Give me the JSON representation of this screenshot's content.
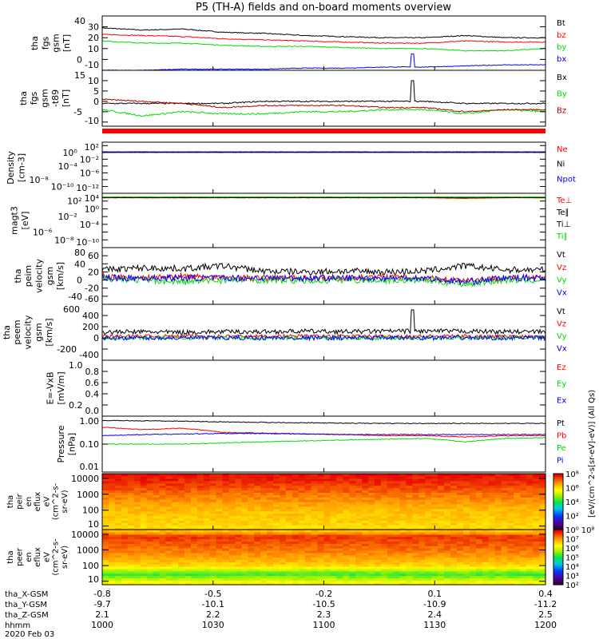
{
  "chart_data": {
    "type": "line",
    "title": "P5 (TH-A) fields and on-board moments overview",
    "x_ticks": [
      "1000",
      "1030",
      "1100",
      "1130",
      "1200"
    ],
    "x_range_hhmm": [
      1000,
      1200
    ],
    "panels": [
      {
        "ylabel": [
          "tha",
          "fgs",
          "gsm",
          "[nT]"
        ],
        "scale": "linear",
        "ylim": [
          -10,
          40
        ],
        "yticks": [
          -10,
          0,
          10,
          20,
          30,
          40
        ],
        "ytick_labels": [
          "-10",
          "0",
          "10",
          "20",
          "30",
          "40"
        ],
        "series": [
          {
            "name": "Bt",
            "color": "#000000",
            "values": [
              29,
              27,
              28,
              25,
              24,
              22,
              21,
              20,
              20,
              22,
              20,
              20
            ],
            "noise": 0.4
          },
          {
            "name": "bz",
            "color": "#ff0000",
            "values": [
              23,
              22,
              21,
              19,
              18,
              17,
              16,
              15,
              15,
              17,
              16,
              16
            ],
            "noise": 0.4
          },
          {
            "name": "by",
            "color": "#00dd00",
            "values": [
              17,
              15,
              15,
              13,
              12,
              12,
              11,
              10,
              10,
              8,
              8,
              10
            ],
            "noise": 0.4
          },
          {
            "name": "bx",
            "color": "#0000ff",
            "values": [
              -10,
              -10,
              -9,
              -9,
              -9,
              -8,
              -8,
              -7,
              -7,
              -6,
              -5,
              -5
            ],
            "noise": 0.3,
            "spike": [
              1124,
              5
            ]
          }
        ]
      },
      {
        "ylabel": [
          "tha",
          "fgs",
          "gsm",
          "-t89",
          "[nT]"
        ],
        "scale": "linear",
        "ylim": [
          -12,
          15
        ],
        "yticks": [
          -10,
          -5,
          0,
          5,
          10,
          15
        ],
        "ytick_labels": [
          "-10",
          "-5",
          "0",
          "5",
          "10",
          "15"
        ],
        "series": [
          {
            "name": "Bx",
            "color": "#000000",
            "values": [
              -1,
              -1,
              -1,
              -1,
              0,
              0,
              0,
              0,
              0,
              -1,
              -1,
              -1
            ],
            "noise": 0.3,
            "spike": [
              1124,
              10
            ]
          },
          {
            "name": "By",
            "color": "#00dd00",
            "values": [
              -4,
              -7,
              -5,
              -6,
              -6,
              -5,
              -5,
              -4,
              -4,
              -6,
              -4,
              -5
            ],
            "noise": 0.4
          },
          {
            "name": "Bz",
            "color": "#b00000",
            "values": [
              1,
              0,
              -1,
              -3,
              -2,
              -2,
              -2,
              -3,
              -3,
              -5,
              -4,
              -4
            ],
            "noise": 0.3
          }
        ]
      },
      {
        "ylabel": [
          "Density",
          "[cm-3]"
        ],
        "scale": "log",
        "ylim": [
          1e-12,
          1000
        ],
        "yticks": [
          1e-12,
          1e-10,
          1e-08,
          1e-06,
          0.0001,
          0.01,
          1,
          100
        ],
        "ytick_labels": [
          "10⁻¹²",
          "10⁻¹⁰",
          "10⁻⁸",
          "10⁻⁶",
          "10⁻⁴",
          "10⁻²",
          "10⁰",
          "10²"
        ],
        "series": [
          {
            "name": "Ne",
            "color": "#ff0000",
            "values": [
              1,
              1,
              1,
              1,
              1,
              1,
              1,
              1,
              1,
              1,
              1,
              1
            ],
            "noise": 0.02
          },
          {
            "name": "Ni",
            "color": "#000000",
            "values": [
              1,
              1,
              1,
              1,
              1,
              1,
              1,
              1,
              1,
              1,
              1,
              1
            ],
            "noise": 0.02
          },
          {
            "name": "Npot",
            "color": "#0000ff",
            "values": [
              1.5,
              1.5,
              1.5,
              1.5,
              1.5,
              1.5,
              1.5,
              1.5,
              1.5,
              1.5,
              1.5,
              1.5
            ],
            "noise": 0.02
          }
        ]
      },
      {
        "ylabel": [
          "magt3",
          "[eV]"
        ],
        "scale": "log",
        "ylim": [
          1e-10,
          10000
        ],
        "yticks": [
          1e-10,
          1e-08,
          1e-06,
          0.0001,
          0.01,
          1,
          100,
          10000
        ],
        "ytick_labels": [
          "10⁻¹⁰",
          "10⁻⁸",
          "10⁻⁶",
          "10⁻⁴",
          "10⁻²",
          "10⁰",
          "10²",
          "10⁴"
        ],
        "series": [
          {
            "name": "Te⊥",
            "color": "#ff0000",
            "values": [
              700,
              700,
              700,
              700,
              700,
              700,
              700,
              700,
              700,
              500,
              700,
              700
            ],
            "noise": 0.02
          },
          {
            "name": "Te∥",
            "color": "#000000",
            "values": [
              800,
              800,
              800,
              800,
              800,
              800,
              800,
              800,
              800,
              800,
              800,
              800
            ],
            "noise": 0.02
          },
          {
            "name": "Ti⊥",
            "color": "#000000",
            "values": [
              1000,
              1000,
              1000,
              1000,
              1000,
              1000,
              1000,
              1000,
              1000,
              1000,
              1000,
              1000
            ],
            "noise": 0.02
          },
          {
            "name": "Ti∥",
            "color": "#00dd00",
            "values": [
              1200,
              1200,
              1200,
              1200,
              1200,
              1200,
              1200,
              1200,
              1200,
              1200,
              1200,
              1200
            ],
            "noise": 0.02
          }
        ]
      },
      {
        "ylabel": [
          "tha",
          "peim",
          "velocity",
          "gsm",
          "[km/s]"
        ],
        "scale": "linear",
        "ylim": [
          -60,
          80
        ],
        "yticks": [
          -60,
          -40,
          -20,
          0,
          20,
          40,
          60,
          80
        ],
        "ytick_labels": [
          "-60",
          "-40",
          "-20",
          "0",
          "20",
          "40",
          "60",
          "80"
        ],
        "series": [
          {
            "name": "Vt",
            "color": "#000000",
            "values": [
              25,
              30,
              28,
              35,
              22,
              20,
              22,
              20,
              22,
              35,
              25,
              25
            ],
            "noise": 8
          },
          {
            "name": "Vz",
            "color": "#ff0000",
            "values": [
              10,
              5,
              10,
              5,
              5,
              5,
              5,
              8,
              5,
              0,
              5,
              5
            ],
            "noise": 7
          },
          {
            "name": "Vy",
            "color": "#00dd00",
            "values": [
              5,
              0,
              -5,
              0,
              0,
              -2,
              0,
              0,
              0,
              -10,
              0,
              0
            ],
            "noise": 8
          },
          {
            "name": "Vx",
            "color": "#0000ff",
            "values": [
              5,
              5,
              5,
              5,
              5,
              5,
              5,
              5,
              5,
              -5,
              5,
              5
            ],
            "noise": 8
          }
        ]
      },
      {
        "ylabel": [
          "tha",
          "peem",
          "velocity",
          "gsm",
          "[km/s]"
        ],
        "scale": "linear",
        "ylim": [
          -400,
          600
        ],
        "yticks": [
          -400,
          -200,
          0,
          200,
          400,
          600
        ],
        "ytick_labels": [
          "-400",
          "-200",
          "0",
          "200",
          "400",
          "600"
        ],
        "series": [
          {
            "name": "Vt",
            "color": "#000000",
            "values": [
              100,
              110,
              100,
              110,
              110,
              120,
              110,
              120,
              120,
              120,
              110,
              110
            ],
            "noise": 40,
            "spike": [
              1124,
              500
            ]
          },
          {
            "name": "Vz",
            "color": "#ff0000",
            "values": [
              30,
              30,
              30,
              30,
              30,
              30,
              30,
              30,
              30,
              30,
              30,
              30
            ],
            "noise": 30
          },
          {
            "name": "Vy",
            "color": "#00dd00",
            "values": [
              0,
              0,
              0,
              0,
              0,
              0,
              0,
              0,
              0,
              0,
              0,
              0
            ],
            "noise": 35
          },
          {
            "name": "Vx",
            "color": "#0000ff",
            "values": [
              0,
              0,
              0,
              0,
              0,
              0,
              0,
              0,
              0,
              0,
              0,
              0
            ],
            "noise": 40
          }
        ]
      },
      {
        "ylabel": [
          "E=-VxB",
          "[mV/m]"
        ],
        "scale": "linear",
        "ylim": [
          0,
          1
        ],
        "yticks": [
          0,
          0.2,
          0.4,
          0.6,
          0.8,
          1.0
        ],
        "ytick_labels": [
          "0.0",
          "0.2",
          "0.4",
          "0.6",
          "0.8",
          "1.0"
        ],
        "series": [
          {
            "name": "Ez",
            "color": "#ff0000",
            "values": []
          },
          {
            "name": "Ey",
            "color": "#00dd00",
            "values": []
          },
          {
            "name": "Ex",
            "color": "#0000ff",
            "values": []
          }
        ]
      },
      {
        "ylabel": [
          "Pressure",
          "[nPa]"
        ],
        "scale": "log",
        "ylim": [
          0.01,
          1
        ],
        "yticks": [
          0.01,
          0.1,
          1
        ],
        "ytick_labels": [
          "0.01",
          "0.10",
          "1.00"
        ],
        "series": [
          {
            "name": "Pt",
            "color": "#000000",
            "values": [
              0.7,
              0.68,
              0.66,
              0.62,
              0.6,
              0.58,
              0.56,
              0.55,
              0.55,
              0.55,
              0.55,
              0.55
            ],
            "noise": 0.01
          },
          {
            "name": "Pb",
            "color": "#ff0000",
            "values": [
              0.4,
              0.33,
              0.37,
              0.26,
              0.25,
              0.23,
              0.22,
              0.2,
              0.2,
              0.18,
              0.2,
              0.2
            ],
            "noise": 0.01
          },
          {
            "name": "Pe",
            "color": "#00dd00",
            "values": [
              0.1,
              0.1,
              0.1,
              0.11,
              0.12,
              0.13,
              0.14,
              0.15,
              0.16,
              0.12,
              0.16,
              0.17
            ],
            "noise": 0.01
          },
          {
            "name": "Pi",
            "color": "#0000ff",
            "values": [
              0.2,
              0.22,
              0.23,
              0.24,
              0.24,
              0.23,
              0.22,
              0.22,
              0.22,
              0.22,
              0.22,
              0.22
            ],
            "noise": 0.01
          }
        ]
      }
    ],
    "spectrograms": [
      {
        "ylabel": [
          "tha",
          "peir",
          "en",
          "eflux",
          "eV",
          "(cm^2-s-",
          "sr-eV)"
        ],
        "ylim": [
          6,
          20000
        ],
        "ytick_labels": [
          "10",
          "100",
          "1000",
          "10000"
        ],
        "yticks": [
          10,
          100,
          1000,
          10000
        ],
        "energy_profile_log_flux": [
          [
            10,
            4.6
          ],
          [
            100,
            4.8
          ],
          [
            1000,
            5.3
          ],
          [
            5000,
            5.7
          ],
          [
            15000,
            5.9
          ]
        ],
        "colorbar": {
          "range_log": [
            0,
            6
          ],
          "tick_labels": [
            "10⁰",
            "10²",
            "10⁴",
            "10⁶",
            "10⁸"
          ],
          "tick_values_log": [
            0,
            2,
            4,
            6,
            8
          ]
        }
      },
      {
        "ylabel": [
          "tha",
          "peer",
          "en",
          "eflux",
          "eV",
          "(cm^2-s-",
          "sr-eV)"
        ],
        "ylim": [
          6,
          20000
        ],
        "ytick_labels": [
          "10",
          "100",
          "1000",
          "10000"
        ],
        "yticks": [
          10,
          100,
          1000,
          10000
        ],
        "energy_profile_log_flux": [
          [
            8,
            6.4
          ],
          [
            30,
            5.2
          ],
          [
            100,
            6.6
          ],
          [
            1000,
            7.3
          ],
          [
            8000,
            7.7
          ],
          [
            15000,
            6.8
          ]
        ],
        "colorbar": {
          "range_log": [
            2,
            8
          ],
          "tick_labels": [
            "10²",
            "10³",
            "10⁴",
            "10⁵",
            "10⁶",
            "10⁷",
            "10⁸"
          ],
          "tick_values_log": [
            2,
            3,
            4,
            5,
            6,
            7,
            8
          ]
        }
      }
    ],
    "colorbar_label": "[eV/(cm^2-s[sr-eV]-eV)] (All Qs)",
    "orbit_rows": [
      {
        "label": "tha_X-GSM",
        "values": [
          "-0.8",
          "-0.5",
          "-0.2",
          "0.1",
          "0.4"
        ]
      },
      {
        "label": "tha_Y-GSM",
        "values": [
          "-9.7",
          "-10.1",
          "-10.5",
          "-10.9",
          "-11.2"
        ]
      },
      {
        "label": "tha_Z-GSM",
        "values": [
          "2.1",
          "2.2",
          "2.3",
          "2.4",
          "2.5"
        ]
      },
      {
        "label": "hhmm",
        "values": [
          "1000",
          "1030",
          "1100",
          "1130",
          "1200"
        ]
      }
    ],
    "date": "2020 Feb 03"
  }
}
